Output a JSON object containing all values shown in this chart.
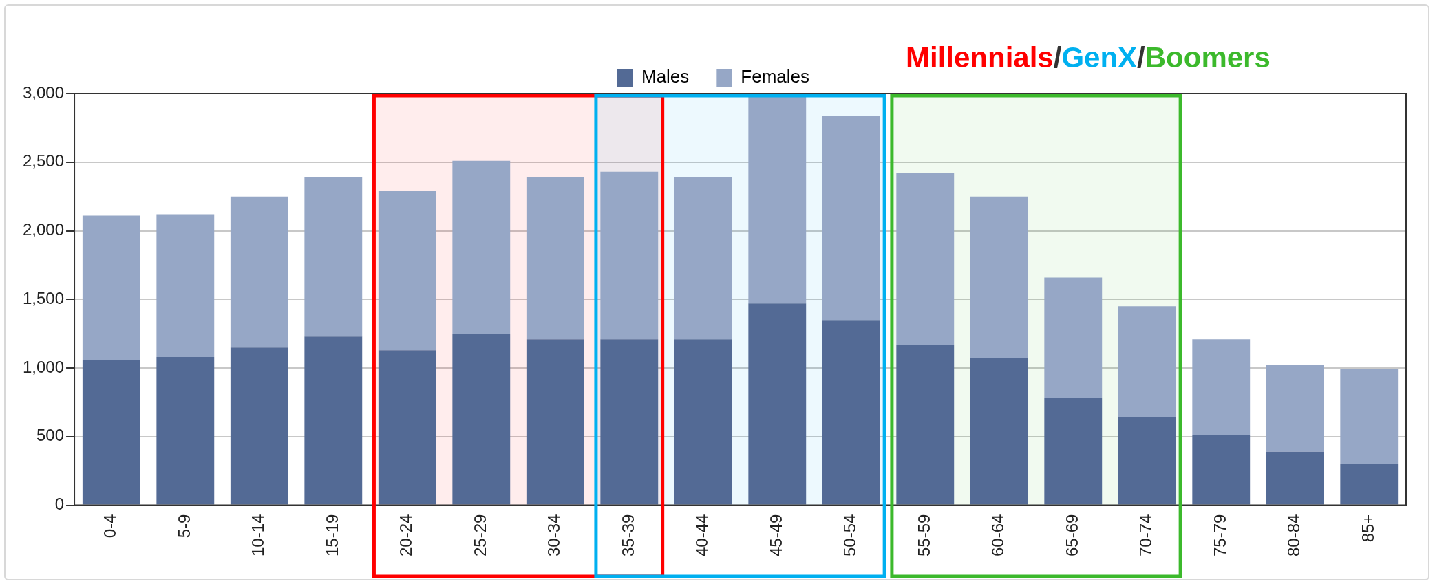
{
  "chart_data": {
    "type": "bar",
    "title": "Millennials/GenX/Boomers",
    "categories": [
      "0-4",
      "5-9",
      "10-14",
      "15-19",
      "20-24",
      "25-29",
      "30-34",
      "35-39",
      "40-44",
      "45-49",
      "50-54",
      "55-59",
      "60-64",
      "65-69",
      "70-74",
      "75-79",
      "80-84",
      "85+"
    ],
    "series": [
      {
        "name": "Males",
        "color": "#536a95",
        "values": [
          1060,
          1080,
          1150,
          1230,
          1130,
          1250,
          1210,
          1210,
          1210,
          1470,
          1350,
          1170,
          1070,
          780,
          640,
          510,
          390,
          300
        ]
      },
      {
        "name": "Females",
        "color": "#96a7c6",
        "values": [
          1050,
          1040,
          1100,
          1160,
          1160,
          1260,
          1180,
          1220,
          1180,
          1510,
          1490,
          1250,
          1180,
          880,
          810,
          700,
          630,
          690
        ]
      }
    ],
    "stacked": true,
    "ylim": [
      0,
      3000
    ],
    "yticks": [
      0,
      500,
      {
        "value": 1000,
        "label": "1,000"
      },
      {
        "value": 1500,
        "label": "1,500"
      },
      {
        "value": 2000,
        "label": "2,000"
      },
      {
        "value": 2500,
        "label": "2,500"
      },
      {
        "value": 3000,
        "label": "3,000"
      }
    ],
    "grid": "y",
    "legend": "top",
    "bands": [
      {
        "axis": "x",
        "from": "20-24",
        "to": "35-39",
        "color": "#ff0000"
      },
      {
        "axis": "x",
        "from": "35-39",
        "to": "50-54",
        "color": "#00b0f0"
      },
      {
        "axis": "x",
        "from": "55-59",
        "to": "70-74",
        "color": "#3cb92c"
      }
    ]
  }
}
